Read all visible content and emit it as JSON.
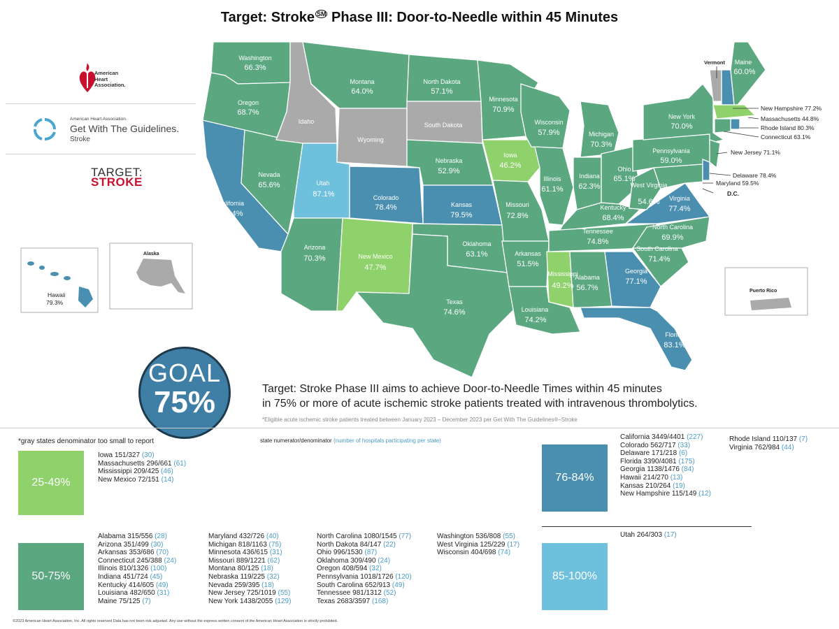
{
  "title": {
    "text": "Target: Stroke",
    "mark": "SM",
    "rest": "Phase III: Door-to-Needle within 45 Minutes"
  },
  "logos": {
    "aha": [
      "American",
      "Heart",
      "Association."
    ],
    "gwtg_small": "American Heart Association.",
    "gwtg_main": "Get With The Guidelines.",
    "gwtg_sub": "Stroke",
    "ts_top": "TARGET:",
    "ts_bottom": "STROKE"
  },
  "colors": {
    "c25": "#8fd16a",
    "c50": "#5aa780",
    "c76": "#4b8fb0",
    "c85": "#6fc0dd",
    "gray": "#aaaaaa",
    "goal": "#3f7fa6"
  },
  "map": {
    "states": {
      "washington": {
        "name": "Washington",
        "pct": "66.3%"
      },
      "oregon": {
        "name": "Oregon",
        "pct": "68.7%"
      },
      "california": {
        "name": "California",
        "pct": "78.4%"
      },
      "nevada": {
        "name": "Nevada",
        "pct": "65.6%"
      },
      "idaho": {
        "name": "Idaho"
      },
      "utah": {
        "name": "Utah",
        "pct": "87.1%"
      },
      "arizona": {
        "name": "Arizona",
        "pct": "70.3%"
      },
      "montana": {
        "name": "Montana",
        "pct": "64.0%"
      },
      "wyoming": {
        "name": "Wyoming"
      },
      "colorado": {
        "name": "Colorado",
        "pct": "78.4%"
      },
      "new_mexico": {
        "name": "New Mexico",
        "pct": "47.7%"
      },
      "north_dakota": {
        "name": "North Dakota",
        "pct": "57.1%"
      },
      "south_dakota": {
        "name": "South Dakota"
      },
      "nebraska": {
        "name": "Nebraska",
        "pct": "52.9%"
      },
      "kansas": {
        "name": "Kansas",
        "pct": "79.5%"
      },
      "oklahoma": {
        "name": "Oklahoma",
        "pct": "63.1%"
      },
      "texas": {
        "name": "Texas",
        "pct": "74.6%"
      },
      "minnesota": {
        "name": "Minnesota",
        "pct": "70.9%"
      },
      "iowa": {
        "name": "Iowa",
        "pct": "46.2%"
      },
      "missouri": {
        "name": "Missouri",
        "pct": "72.8%"
      },
      "arkansas": {
        "name": "Arkansas",
        "pct": "51.5%"
      },
      "louisiana": {
        "name": "Louisiana",
        "pct": "74.2%"
      },
      "wisconsin": {
        "name": "Wisconsin",
        "pct": "57.9%"
      },
      "illinois": {
        "name": "Illinois",
        "pct": "61.1%"
      },
      "mississippi": {
        "name": "Mississippi",
        "pct": "49.2%"
      },
      "michigan": {
        "name": "Michigan",
        "pct": "70.3%"
      },
      "indiana": {
        "name": "Indiana",
        "pct": "62.3%"
      },
      "ohio": {
        "name": "Ohio",
        "pct": "65.1%"
      },
      "kentucky": {
        "name": "Kentucky",
        "pct": "68.4%"
      },
      "tennessee": {
        "name": "Tennessee",
        "pct": "74.8%"
      },
      "alabama": {
        "name": "Alabama",
        "pct": "56.7%"
      },
      "georgia": {
        "name": "Georgia",
        "pct": "77.1%"
      },
      "florida": {
        "name": "Florida",
        "pct": "83.1%"
      },
      "south_carolina": {
        "name": "South Carolina",
        "pct": "71.4%"
      },
      "north_carolina": {
        "name": "North Carolina",
        "pct": "69.9%"
      },
      "virginia": {
        "name": "Virginia",
        "pct": "77.4%"
      },
      "west_virginia": {
        "name": "West Virginia",
        "pct": "54.6%"
      },
      "pennsylvania": {
        "name": "Pennsylvania",
        "pct": "59.0%"
      },
      "new_york": {
        "name": "New York",
        "pct": "70.0%"
      },
      "maine": {
        "name": "Maine",
        "pct": "60.0%"
      },
      "vermont": {
        "name": "Vermont"
      },
      "hawaii": {
        "name": "Hawaii",
        "pct": "79.3%"
      },
      "alaska": {
        "name": "Alaska"
      },
      "puerto_rico": {
        "name": "Puerto Rico"
      }
    },
    "callouts": {
      "new_hampshire": "New Hampshire 77.2%",
      "massachusetts": "Massachusetts 44.8%",
      "rhode_island": "Rhode Island 80.3%",
      "connecticut": "Connecticut 63.1%",
      "new_jersey": "New Jersey 71.1%",
      "delaware": "Delaware 78.4%",
      "maryland": "Maryland 59.5%",
      "dc": "D.C."
    }
  },
  "goal": {
    "label": "GOAL",
    "value": "75%",
    "value_num": 75
  },
  "description": {
    "line1": "Target: Stroke Phase III aims to achieve Door-to-Needle Times within 45 minutes",
    "line2": "in 75% or more of acute ischemic stroke patients treated with intravenous thrombolytics.",
    "footnote": "*Eligible acute ischemic stroke patients treated between January 2023 – December 2023 per Get With The Guidelines®–Stroke"
  },
  "legend": {
    "gray_note": "*gray states denominator too small to report",
    "sn_label": "state numerator/denominator",
    "sn_hosp": "(number of hospitals participating per state)",
    "b25": {
      "label": "25-49%",
      "col1": [
        {
          "t": "Iowa 151/327",
          "h": "(30)"
        },
        {
          "t": "Massachusetts 296/661",
          "h": "(61)"
        },
        {
          "t": "Mississippi 209/425",
          "h": "(46)"
        },
        {
          "t": "New Mexico 72/151",
          "h": "(14)"
        }
      ]
    },
    "b50": {
      "label": "50-75%",
      "col1": [
        {
          "t": "Alabama 315/556",
          "h": "(28)"
        },
        {
          "t": "Arizona 351/499",
          "h": "(30)"
        },
        {
          "t": "Arkansas 353/686",
          "h": "(70)"
        },
        {
          "t": "Connecticut 245/388",
          "h": "(24)"
        },
        {
          "t": "Illinois 810/1326",
          "h": "(100)"
        },
        {
          "t": "Indiana 451/724",
          "h": "(45)"
        },
        {
          "t": "Kentucky 414/605",
          "h": "(49)"
        },
        {
          "t": "Louisiana 482/650",
          "h": "(31)"
        },
        {
          "t": "Maine 75/125",
          "h": "(7)"
        }
      ],
      "col2": [
        {
          "t": "Maryland 432/726",
          "h": "(40)"
        },
        {
          "t": "Michigan 818/1163",
          "h": "(75)"
        },
        {
          "t": "Minnesota 436/615",
          "h": "(31)"
        },
        {
          "t": "Missouri 889/1221",
          "h": "(62)"
        },
        {
          "t": "Montana 80/125",
          "h": "(18)"
        },
        {
          "t": "Nebraska 119/225",
          "h": "(32)"
        },
        {
          "t": "Nevada 259/395",
          "h": "(18)"
        },
        {
          "t": "New Jersey 725/1019",
          "h": "(55)"
        },
        {
          "t": "New York 1438/2055",
          "h": "(129)"
        }
      ],
      "col3": [
        {
          "t": "North Carolina 1080/1545",
          "h": "(77)"
        },
        {
          "t": "North Dakota 84/147",
          "h": "(22)"
        },
        {
          "t": "Ohio 996/1530",
          "h": "(87)"
        },
        {
          "t": "Oklahoma 309/490",
          "h": "(24)"
        },
        {
          "t": "Oregon 408/594",
          "h": "(32)"
        },
        {
          "t": "Pennsylvania 1018/1726",
          "h": "(120)"
        },
        {
          "t": "South Carolina 652/913",
          "h": "(49)"
        },
        {
          "t": "Tennessee 981/1312",
          "h": "(52)"
        },
        {
          "t": "Texas 2683/3597",
          "h": "(168)"
        }
      ],
      "col4": [
        {
          "t": "Washington 536/808",
          "h": "(55)"
        },
        {
          "t": "West Virginia 125/229",
          "h": "(17)"
        },
        {
          "t": "Wisconsin 404/698",
          "h": "(74)"
        }
      ]
    },
    "b76": {
      "label": "76-84%",
      "col1": [
        {
          "t": "California 3449/4401",
          "h": "(227)"
        },
        {
          "t": "Colorado 562/717",
          "h": "(33)"
        },
        {
          "t": "Delaware 171/218",
          "h": "(6)"
        },
        {
          "t": "Florida 3390/4081",
          "h": "(175)"
        },
        {
          "t": "Georgia 1138/1476",
          "h": "(84)"
        },
        {
          "t": "Hawaii 214/270",
          "h": "(13)"
        },
        {
          "t": "Kansas 210/264",
          "h": "(19)"
        },
        {
          "t": "New Hampshire 115/149",
          "h": "(12)"
        }
      ],
      "col2": [
        {
          "t": "Rhode Island 110/137",
          "h": "(7)"
        },
        {
          "t": "Virginia 762/984",
          "h": "(44)"
        }
      ]
    },
    "b85": {
      "label": "85-100%",
      "col1": [
        {
          "t": "Utah 264/303",
          "h": "(17)"
        }
      ]
    }
  },
  "copyright": "©2023 American Heart Association, Inc. All rights reserved Data has not been risk adjusted. Any use without the express written consent of the American Heart Association is strictly prohibited."
}
